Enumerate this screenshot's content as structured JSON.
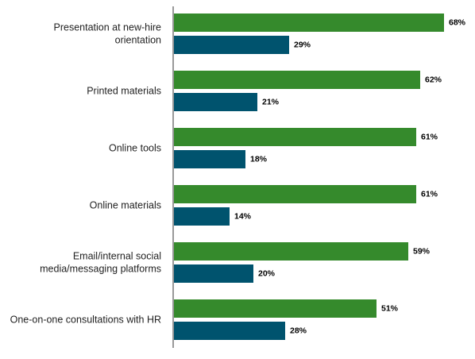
{
  "chart_data": {
    "type": "bar",
    "orientation": "horizontal",
    "categories": [
      [
        "Presentation at new-hire",
        "orientation"
      ],
      [
        "Printed materials"
      ],
      [
        "Online tools"
      ],
      [
        "Online materials"
      ],
      [
        "Email/internal social",
        "media/messaging platforms"
      ],
      [
        "One-on-one consultations with HR"
      ]
    ],
    "series": [
      {
        "values": [
          68,
          62,
          61,
          61,
          59,
          51
        ],
        "color": "#358A2C"
      },
      {
        "values": [
          29,
          21,
          18,
          14,
          20,
          28
        ],
        "color": "#00536E"
      }
    ],
    "value_format": "{v}%",
    "xlim": [
      0,
      80
    ],
    "grid": false,
    "legend": "none",
    "axis_line_color": "#333333"
  }
}
